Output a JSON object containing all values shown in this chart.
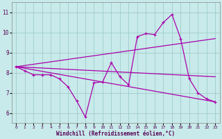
{
  "background_color": "#c8eaea",
  "grid_color": "#a0cccc",
  "line_color": "#aa00aa",
  "xlabel": "Windchill (Refroidissement éolien,°C)",
  "xlim": [
    -0.5,
    23.5
  ],
  "ylim": [
    5.5,
    11.5
  ],
  "yticks": [
    6,
    7,
    8,
    9,
    10,
    11
  ],
  "xticks": [
    0,
    1,
    2,
    3,
    4,
    5,
    6,
    7,
    8,
    9,
    10,
    11,
    12,
    13,
    14,
    15,
    16,
    17,
    18,
    19,
    20,
    21,
    22,
    23
  ],
  "main_x": [
    0,
    1,
    2,
    3,
    4,
    5,
    6,
    7,
    8,
    9,
    10,
    11,
    12,
    13,
    14,
    15,
    16,
    17,
    18,
    19,
    20,
    21,
    22,
    23
  ],
  "main_y": [
    8.3,
    8.1,
    7.9,
    7.9,
    7.9,
    7.7,
    7.3,
    6.6,
    5.8,
    7.5,
    7.55,
    8.5,
    7.8,
    7.4,
    9.8,
    9.95,
    9.9,
    10.5,
    10.9,
    9.7,
    7.7,
    7.0,
    6.7,
    6.55
  ],
  "trend1_x": [
    0,
    23
  ],
  "trend1_y": [
    8.3,
    9.7
  ],
  "trend2_x": [
    0,
    23
  ],
  "trend2_y": [
    8.3,
    7.8
  ],
  "trend3_x": [
    0,
    23
  ],
  "trend3_y": [
    8.3,
    6.55
  ]
}
